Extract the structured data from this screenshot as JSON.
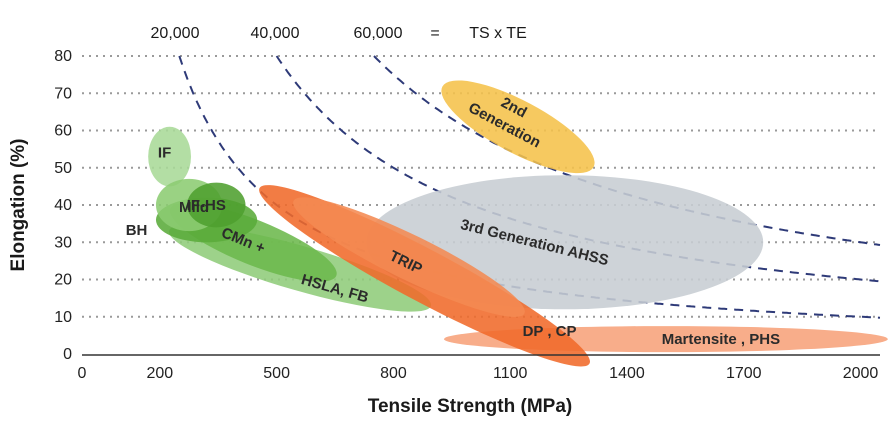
{
  "chart_data": {
    "type": "bubble-regions",
    "title": "",
    "xlabel": "Tensile Strength (MPa)",
    "ylabel": "Elongation (%)",
    "xlim": [
      0,
      2050
    ],
    "ylim": [
      0,
      80
    ],
    "x_ticks": [
      "0",
      "200",
      "500",
      "800",
      "1100",
      "1400",
      "1700",
      "2000"
    ],
    "y_ticks": [
      "0",
      "10",
      "20",
      "30",
      "40",
      "50",
      "60",
      "70",
      "80"
    ],
    "grid": "horizontal-dotted",
    "iso_curves": {
      "labels": [
        "20,000",
        "40,000",
        "60,000"
      ],
      "values": [
        20000,
        40000,
        60000
      ],
      "equals": "=",
      "formula": "TS x TE"
    },
    "regions": [
      {
        "id": "ellipse-2nd-gen",
        "label": "2nd\nGeneration",
        "cx": 1120,
        "cy": 61,
        "rx": 220,
        "ry": 7,
        "angle": 28,
        "color": "#f5c24a"
      },
      {
        "id": "ellipse-3rd-gen",
        "label": "3rd Generation AHSS",
        "cx": 1240,
        "cy": 30,
        "rx": 510,
        "ry": 18,
        "angle": 0,
        "color": "#c7cdd3"
      },
      {
        "id": "ellipse-martensite",
        "label": "Martensite , PHS",
        "cx": 1500,
        "cy": 4,
        "rx": 570,
        "ry": 3.5,
        "angle": 0,
        "color": "#f7a27a"
      },
      {
        "id": "ellipse-hsla",
        "label": "HSLA, FB",
        "cx": 560,
        "cy": 23,
        "rx": 350,
        "ry": 6,
        "angle": 16,
        "color": "#8fcc7a"
      },
      {
        "id": "ellipse-cmn",
        "label": "CMn +",
        "cx": 440,
        "cy": 30,
        "rx": 230,
        "ry": 6,
        "angle": 22,
        "color": "#6cb84c"
      },
      {
        "id": "ellipse-bh",
        "label": "BH",
        "cx": 320,
        "cy": 36,
        "rx": 130,
        "ry": 6,
        "angle": 0,
        "color": "#5aab3a"
      },
      {
        "id": "ellipse-if",
        "label": "IF",
        "cx": 225,
        "cy": 53,
        "rx": 55,
        "ry": 8,
        "angle": 0,
        "color": "#a9d997"
      },
      {
        "id": "ellipse-mild",
        "label": "Mild",
        "cx": 275,
        "cy": 40,
        "rx": 85,
        "ry": 7,
        "angle": 0,
        "color": "#8ccc72"
      },
      {
        "id": "ellipse-ifhs",
        "label": "IF-HS",
        "cx": 345,
        "cy": 40,
        "rx": 75,
        "ry": 6,
        "angle": 0,
        "color": "#4f9f2f"
      },
      {
        "id": "ellipse-dp-cp",
        "label": "DP , CP",
        "cx": 880,
        "cy": 21,
        "rx": 480,
        "ry": 7,
        "angle": 28,
        "color": "#f06a2a"
      },
      {
        "id": "ellipse-trip",
        "label": "TRIP",
        "cx": 840,
        "cy": 26,
        "rx": 330,
        "ry": 6,
        "angle": 26,
        "color": "#f48a52"
      }
    ]
  }
}
